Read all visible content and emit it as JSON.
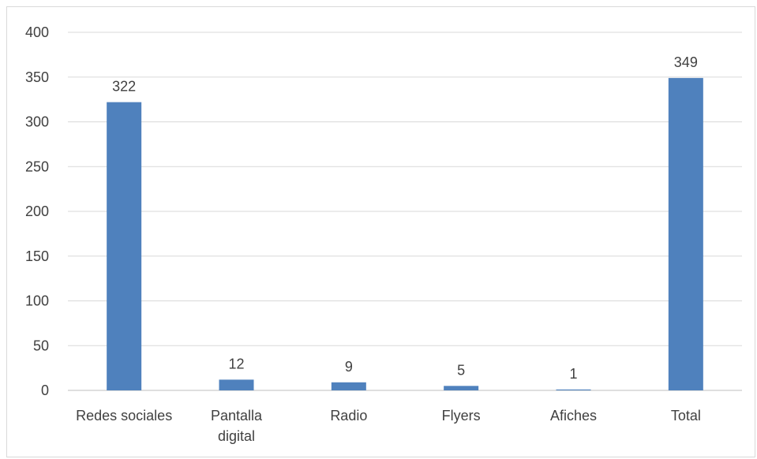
{
  "chart_data": {
    "type": "bar",
    "title": "",
    "xlabel": "",
    "ylabel": "",
    "categories": [
      "Redes sociales",
      "Pantalla digital",
      "Radio",
      "Flyers",
      "Afiches",
      "Total"
    ],
    "category_lines": [
      [
        "Redes sociales"
      ],
      [
        "Pantalla",
        "digital"
      ],
      [
        "Radio"
      ],
      [
        "Flyers"
      ],
      [
        "Afiches"
      ],
      [
        "Total"
      ]
    ],
    "values": [
      322,
      12,
      9,
      5,
      1,
      349
    ],
    "data_labels": [
      "322",
      "12",
      "9",
      "5",
      "1",
      "349"
    ],
    "ylim": [
      0,
      400
    ],
    "yticks": [
      0,
      50,
      100,
      150,
      200,
      250,
      300,
      350,
      400
    ],
    "ytick_labels": [
      "0",
      "50",
      "100",
      "150",
      "200",
      "250",
      "300",
      "350",
      "400"
    ],
    "grid": true,
    "legend": "none",
    "colors": {
      "bar": "#4f81bd",
      "grid": "#d9d9d9",
      "text": "#404040",
      "border": "#d9d9d9"
    }
  }
}
